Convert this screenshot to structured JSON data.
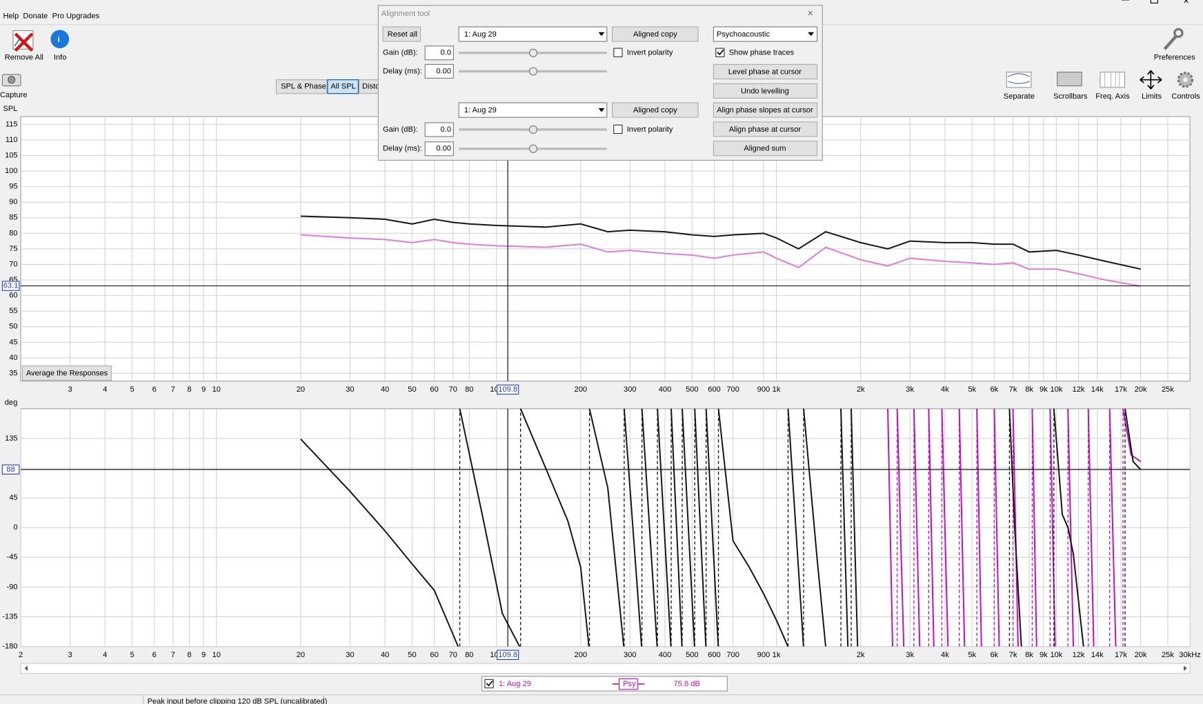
{
  "menu": [
    "Help",
    "Donate",
    "Pro Upgrades"
  ],
  "toolbar_left": [
    "Remove All",
    "Info",
    "Capture"
  ],
  "toolbar_right": [
    "Preferences",
    "Separate",
    "Scrollbars",
    "Freq. Axis",
    "Limits",
    "Controls"
  ],
  "tabs": [
    "SPL & Phase",
    "All SPL",
    "Disto"
  ],
  "spl_plot": {
    "type": "line",
    "y_label": "SPL",
    "x_scale": "log",
    "xlim": [
      2,
      30000
    ],
    "ylim": [
      32.5,
      117.5
    ],
    "xticks": [
      3,
      4,
      5,
      6,
      7,
      8,
      9,
      10,
      20,
      30,
      40,
      50,
      60,
      70,
      80,
      100,
      200,
      300,
      400,
      500,
      600,
      700,
      900,
      {
        "value": 1000,
        "label": "1k"
      },
      {
        "value": 2000,
        "label": "2k"
      },
      {
        "value": 3000,
        "label": "3k"
      },
      {
        "value": 4000,
        "label": "4k"
      },
      {
        "value": 5000,
        "label": "5k"
      },
      {
        "value": 6000,
        "label": "6k"
      },
      {
        "value": 7000,
        "label": "7k"
      },
      {
        "value": 8000,
        "label": "8k"
      },
      {
        "value": 9000,
        "label": "9k"
      },
      {
        "value": 10000,
        "label": "10k"
      },
      {
        "value": 12000,
        "label": "12k"
      },
      {
        "value": 14000,
        "label": "14k"
      },
      {
        "value": 17000,
        "label": "17k"
      },
      {
        "value": 20000,
        "label": "20k"
      },
      {
        "value": 25000,
        "label": "25k"
      }
    ],
    "yticks": [
      35,
      40,
      45,
      50,
      55,
      60,
      65,
      70,
      75,
      80,
      85,
      90,
      95,
      100,
      105,
      110,
      115
    ],
    "cursor": {
      "x": 109.8,
      "y": 63.1
    },
    "series": [
      {
        "name": "1: Aug 29 black",
        "color": "#1a1418",
        "x": [
          20,
          30,
          40,
          50,
          60,
          70,
          80,
          100,
          150,
          200,
          250,
          300,
          400,
          500,
          600,
          700,
          900,
          1000,
          1200,
          1500,
          2000,
          2500,
          3000,
          4000,
          5000,
          6000,
          7000,
          8000,
          10000,
          12000,
          15000,
          20000
        ],
        "values": [
          85.5,
          85,
          84.5,
          83,
          84.5,
          83.5,
          83,
          82.5,
          82,
          83,
          80.5,
          81,
          80.5,
          79.5,
          79,
          79.5,
          80,
          78.5,
          75,
          80.5,
          77,
          75,
          77.5,
          77,
          77,
          76.5,
          76.5,
          74,
          74.5,
          73,
          71,
          68.5
        ]
      },
      {
        "name": "1: Aug 29 pink",
        "color": "#e07ae0",
        "x": [
          20,
          30,
          40,
          50,
          60,
          70,
          80,
          100,
          150,
          200,
          250,
          300,
          400,
          500,
          600,
          700,
          900,
          1000,
          1200,
          1500,
          2000,
          2500,
          3000,
          4000,
          5000,
          6000,
          7000,
          8000,
          10000,
          12000,
          15000,
          20000
        ],
        "values": [
          79.5,
          78.5,
          78,
          77,
          78,
          77,
          76.5,
          76,
          75.5,
          76.5,
          74,
          74.5,
          73.5,
          73,
          72,
          73,
          74,
          72,
          69,
          75.5,
          71.5,
          69.5,
          72,
          71,
          70.5,
          70,
          70.5,
          68.5,
          68.5,
          67,
          65,
          63
        ]
      }
    ]
  },
  "average_button": "Average the Responses",
  "phase_plot": {
    "type": "line",
    "y_label": "deg",
    "x_scale": "log",
    "wrap_connectors": true,
    "xlim": [
      2,
      30000
    ],
    "ylim": [
      -180,
      180
    ],
    "xticks": [
      2,
      3,
      4,
      5,
      6,
      7,
      8,
      9,
      10,
      20,
      30,
      40,
      50,
      60,
      70,
      80,
      100,
      200,
      300,
      400,
      500,
      600,
      700,
      900,
      {
        "value": 1000,
        "label": "1k"
      },
      {
        "value": 2000,
        "label": "2k"
      },
      {
        "value": 3000,
        "label": "3k"
      },
      {
        "value": 4000,
        "label": "4k"
      },
      {
        "value": 5000,
        "label": "5k"
      },
      {
        "value": 6000,
        "label": "6k"
      },
      {
        "value": 7000,
        "label": "7k"
      },
      {
        "value": 8000,
        "label": "8k"
      },
      {
        "value": 9000,
        "label": "9k"
      },
      {
        "value": 10000,
        "label": "10k"
      },
      {
        "value": 12000,
        "label": "12k"
      },
      {
        "value": 14000,
        "label": "14k"
      },
      {
        "value": 17000,
        "label": "17k"
      },
      {
        "value": 20000,
        "label": "20k"
      },
      {
        "value": 25000,
        "label": "25k"
      },
      {
        "value": 30000,
        "label": "30kHz"
      }
    ],
    "yticks": [
      -180,
      -135,
      -90,
      -45,
      0,
      45,
      90,
      135
    ],
    "cursor": {
      "x": 109.8,
      "y": 88
    },
    "series": [
      {
        "name": "pink phase",
        "color": "#c010c0",
        "x": [
          2500,
          2600,
          null,
          2700,
          2850,
          null,
          3100,
          3250,
          null,
          3500,
          3650,
          null,
          3900,
          4100,
          null,
          4500,
          4700,
          null,
          5200,
          5400,
          null,
          6000,
          6250,
          null,
          7000,
          7300,
          null,
          8200,
          8500,
          null,
          9500,
          9900,
          null,
          11000,
          11500,
          null,
          13000,
          13600,
          null,
          15500,
          16300,
          null,
          17300,
          18500,
          20000
        ],
        "values": [
          180,
          -180,
          null,
          180,
          -180,
          null,
          180,
          -180,
          null,
          180,
          -180,
          null,
          180,
          -180,
          null,
          180,
          -180,
          null,
          180,
          -180,
          null,
          180,
          -180,
          null,
          180,
          -180,
          null,
          180,
          -180,
          null,
          180,
          -180,
          null,
          180,
          -180,
          null,
          180,
          -180,
          null,
          180,
          -180,
          null,
          180,
          110,
          100
        ]
      },
      {
        "name": "black phase",
        "color": "#1a1418",
        "x": [
          20,
          30,
          40,
          50,
          60,
          73,
          null,
          74,
          90,
          105,
          121,
          null,
          122,
          150,
          180,
          200,
          214,
          null,
          215,
          250,
          285,
          null,
          286,
          330,
          null,
          331,
          375,
          null,
          376,
          420,
          null,
          421,
          460,
          null,
          461,
          510,
          null,
          511,
          560,
          null,
          561,
          620,
          null,
          621,
          700,
          800,
          900,
          1000,
          1100,
          null,
          1101,
          1250,
          null,
          1251,
          1400,
          1500,
          null,
          1700,
          1800,
          null,
          1850,
          1950,
          null,
          6800,
          7100,
          7500,
          null,
          9800,
          10500,
          11000,
          11500,
          12500,
          null,
          17600,
          18800,
          20000
        ],
        "values": [
          134,
          55,
          -5,
          -55,
          -95,
          -180,
          null,
          180,
          10,
          -130,
          -180,
          null,
          180,
          90,
          10,
          -60,
          -180,
          null,
          180,
          60,
          -180,
          null,
          180,
          -180,
          null,
          180,
          -180,
          null,
          180,
          -180,
          null,
          180,
          -180,
          null,
          180,
          -180,
          null,
          180,
          -180,
          null,
          180,
          -180,
          null,
          180,
          -20,
          -60,
          -100,
          -140,
          -180,
          null,
          180,
          -180,
          null,
          180,
          -50,
          -180,
          null,
          180,
          -180,
          null,
          180,
          -180,
          null,
          180,
          0,
          -180,
          null,
          180,
          20,
          0,
          -40,
          -180,
          null,
          180,
          100,
          88
        ]
      }
    ]
  },
  "alignment_tool": {
    "title": "Alignment tool",
    "reset": "Reset all",
    "channels": [
      {
        "measurement": "1: Aug 29",
        "aligned_copy": "Aligned copy",
        "gain_label": "Gain (dB):",
        "gain": "0.0",
        "delay_label": "Delay (ms):",
        "delay": "0.00",
        "invert": "Invert polarity"
      },
      {
        "measurement": "1: Aug 29",
        "aligned_copy": "Aligned copy",
        "gain_label": "Gain (dB):",
        "gain": "0.0",
        "delay_label": "Delay (ms):",
        "delay": "0.00",
        "invert": "Invert polarity"
      }
    ],
    "mode": "Psychoacoustic",
    "show_phase": "Show phase traces",
    "buttons": [
      "Level phase at cursor",
      "Undo levelling",
      "Align phase slopes at cursor",
      "Align phase at cursor",
      "Aligned sum"
    ]
  },
  "legend": {
    "name": "1: Aug 29",
    "smoothing": "Psy",
    "level": "75.8 dB"
  },
  "status_bar": "Peak input before clipping 120 dB SPL (uncalibrated)"
}
